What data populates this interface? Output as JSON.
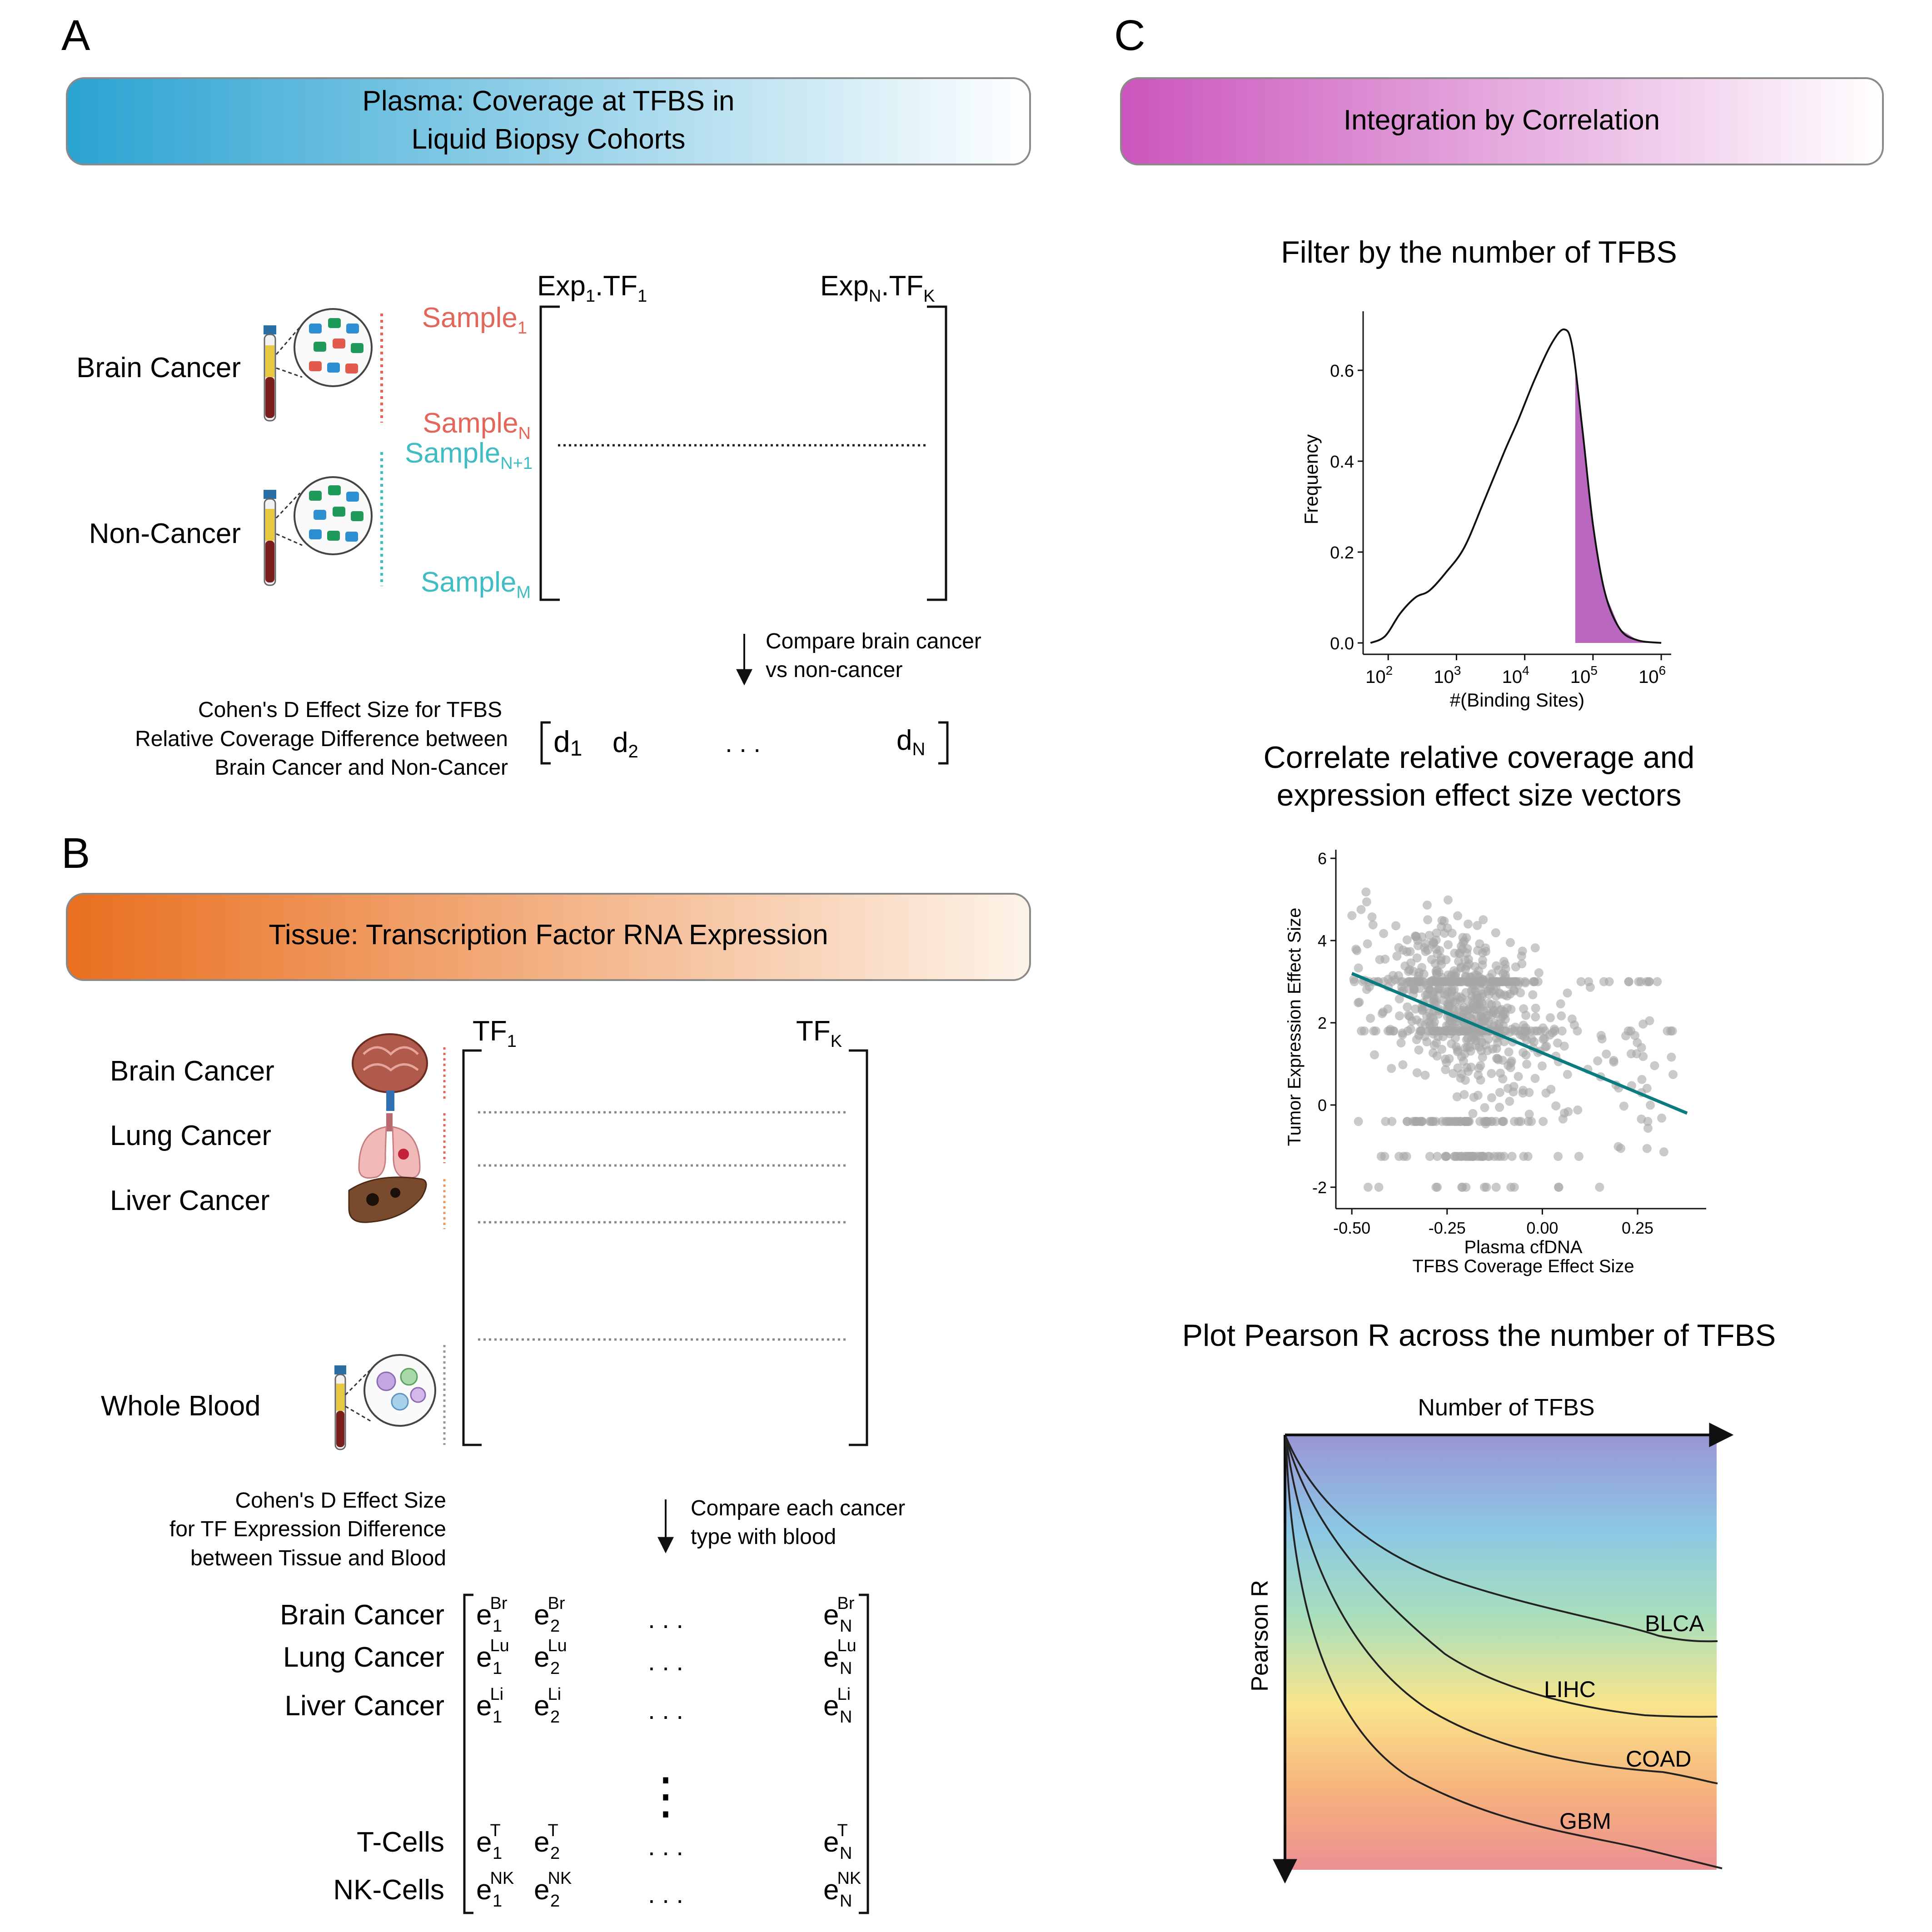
{
  "panels": {
    "a": {
      "letter": "A",
      "banner_line1": "Plasma: Coverage at TFBS in",
      "banner_line2": "Liquid Biopsy Cohorts",
      "group_brain": "Brain Cancer",
      "group_noncancer": "Non-Cancer",
      "sample_word": "Sample",
      "sample_subs": [
        "1",
        "N",
        "N+1",
        "M"
      ],
      "col_left_main": "Exp",
      "col_left_sub1": "1",
      "col_left_dot": ".TF",
      "col_left_sub2": "1",
      "col_right_main": "Exp",
      "col_right_sub1": "N",
      "col_right_dot": ".TF",
      "col_right_sub2": "K",
      "compare_line1": "Compare brain cancer",
      "compare_line2": "vs non-cancer",
      "effect_line1": "Cohen's D Effect Size for TFBS",
      "effect_line2": "Relative Coverage Difference between",
      "effect_line3": "Brain Cancer and Non-Cancer",
      "vec_d": "d",
      "vec_subs": [
        "1",
        "2",
        "N"
      ],
      "ellipsis": ". . ."
    },
    "b": {
      "letter": "B",
      "banner": "Tissue: Transcription Factor RNA Expression",
      "rows": [
        "Brain Cancer",
        "Lung Cancer",
        "Liver Cancer",
        "Whole Blood"
      ],
      "col_left_main": "TF",
      "col_left_sub": "1",
      "col_right_main": "TF",
      "col_right_sub": "K",
      "effect_line1": "Cohen's D Effect Size",
      "effect_line2": "for TF Expression Difference",
      "effect_line3": "between Tissue and Blood",
      "compare_line1": "Compare each cancer",
      "compare_line2": "type with blood",
      "matrix_rows": [
        {
          "label": "Brain Cancer",
          "sup": "Br"
        },
        {
          "label": "Lung Cancer",
          "sup": "Lu"
        },
        {
          "label": "Liver Cancer",
          "sup": "Li"
        },
        {
          "label": "T-Cells",
          "sup": "T"
        },
        {
          "label": "NK-Cells",
          "sup": "NK"
        }
      ],
      "e": "e",
      "subs": [
        "1",
        "2",
        "N"
      ],
      "ellipsis": ". . .",
      "vdots": "⋮"
    },
    "c": {
      "letter": "C",
      "banner": "Integration by Correlation",
      "density_title": "Filter by the number of TFBS",
      "corr_title_line1": "Correlate relative coverage and",
      "corr_title_line2": "expression effect size vectors",
      "pearson_title": "Plot Pearson R across the number of TFBS",
      "pearson_xlabel": "Number of TFBS",
      "pearson_ylabel": "Pearson R",
      "pearson_curves": [
        "BLCA",
        "LIHC",
        "COAD",
        "GBM"
      ]
    }
  },
  "chart_data": [
    {
      "type": "area",
      "title": "",
      "xlabel": "#(Binding Sites)",
      "ylabel": "Frequency",
      "x_scale": "log10",
      "xlim": [
        50,
        1200000
      ],
      "ylim": [
        0,
        0.72
      ],
      "x_ticks": [
        {
          "base": "10",
          "exp": "2"
        },
        {
          "base": "10",
          "exp": "3"
        },
        {
          "base": "10",
          "exp": "4"
        },
        {
          "base": "10",
          "exp": "5"
        },
        {
          "base": "10",
          "exp": "6"
        }
      ],
      "y_ticks": [
        "0.0",
        "0.2",
        "0.4",
        "0.6"
      ],
      "curve": [
        [
          55,
          0.0
        ],
        [
          90,
          0.015
        ],
        [
          150,
          0.065
        ],
        [
          250,
          0.1
        ],
        [
          400,
          0.115
        ],
        [
          700,
          0.155
        ],
        [
          1300,
          0.21
        ],
        [
          2500,
          0.31
        ],
        [
          5000,
          0.42
        ],
        [
          8000,
          0.49
        ],
        [
          14000,
          0.58
        ],
        [
          25000,
          0.66
        ],
        [
          38000,
          0.69
        ],
        [
          50000,
          0.65
        ],
        [
          70000,
          0.47
        ],
        [
          100000,
          0.26
        ],
        [
          150000,
          0.11
        ],
        [
          250000,
          0.03
        ],
        [
          450000,
          0.006
        ],
        [
          1000000,
          0.0
        ]
      ],
      "highlight_from": 55000,
      "fill_color": "#b356b8"
    },
    {
      "type": "scatter",
      "title": "",
      "xlabel": "Plasma cfDNA",
      "xlabel2": "TFBS Coverage Effect Size",
      "ylabel": "Tumor Expression Effect Size",
      "xlim": [
        -0.53,
        0.43
      ],
      "ylim": [
        -2.3,
        6.1
      ],
      "x_ticks": [
        "-0.50",
        "-0.25",
        "0.00",
        "0.25"
      ],
      "y_ticks": [
        "-2",
        "0",
        "2",
        "4",
        "6"
      ],
      "fit_line": [
        [
          -0.5,
          3.2
        ],
        [
          0.38,
          -0.2
        ]
      ],
      "point_color": "#a6a6a6",
      "line_color": "#0b7b80",
      "n_points": 900,
      "seed": 7
    }
  ],
  "colors": {
    "banner_a_start": "#2aa3d2",
    "banner_a_end": "#ffffff",
    "banner_b_start": "#e96f1f",
    "banner_b_end": "#ffffff",
    "banner_c_start": "#cb55bd",
    "banner_c_end": "#ffffff",
    "sample_red": "#e3665b",
    "sample_teal": "#3fbcc4"
  }
}
